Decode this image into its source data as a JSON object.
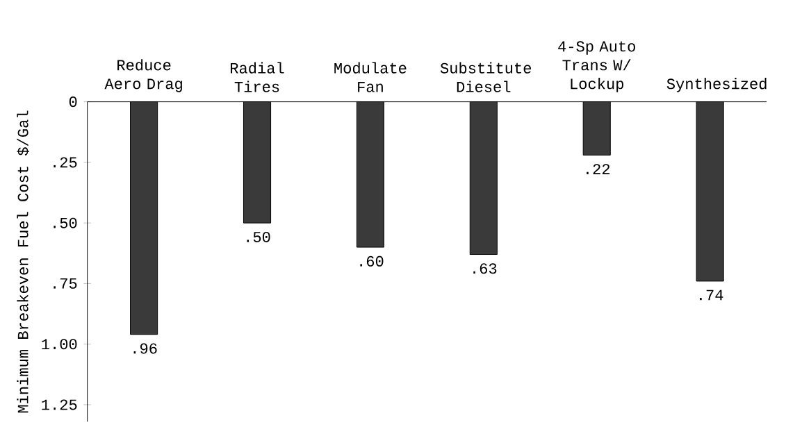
{
  "chart_data": {
    "type": "bar",
    "ylabel": "Minimum Breakeven Fuel Cost $/Gal",
    "categories": [
      "Reduce Aero Drag",
      "Radial Tires",
      "Modulate Fan",
      "Substitute Diesel",
      "4-Sp Auto Trans W/ Lockup",
      "Synthesized"
    ],
    "values": [
      0.96,
      0.5,
      0.6,
      0.63,
      0.22,
      0.74
    ],
    "value_labels": [
      ".96",
      ".50",
      ".60",
      ".63",
      ".22",
      ".74"
    ],
    "color": "#3a3a3a",
    "ylim": [
      1.32,
      0
    ],
    "yticks": [
      0,
      {
        "value": 0.25,
        "label": ".25"
      },
      {
        "value": 0.5,
        "label": ".50"
      },
      {
        "value": 0.75,
        "label": ".75"
      },
      {
        "value": 1.0,
        "label": "1.00"
      },
      {
        "value": 1.25,
        "label": "1.25"
      }
    ],
    "grid": false
  }
}
